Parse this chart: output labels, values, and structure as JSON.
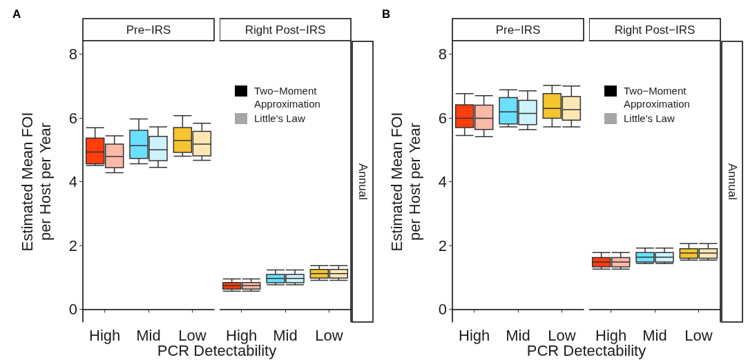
{
  "chart_data": [
    {
      "type": "box",
      "title": "Pre−IRS",
      "ylabel": "Estimated Mean FOI\nper Host per Year",
      "xlabel": "PCR Detectability",
      "annotations": [
        "A"
      ],
      "categories": [
        "High",
        "Mid",
        "Low"
      ],
      "ylim": [
        -0.4,
        8.4
      ],
      "yticks": [
        0,
        2,
        4,
        6,
        8
      ],
      "grid": false,
      "series": [
        {
          "colors": [
            "#ff3d0d",
            "#6ae0ff",
            "#f5c431"
          ],
          "boxes": [
            {
              "low": 4.51,
              "q1": 4.56,
              "median": 4.93,
              "q3": 5.37,
              "high": 5.69
            },
            {
              "low": 4.56,
              "q1": 4.73,
              "median": 5.13,
              "q3": 5.61,
              "high": 5.97
            },
            {
              "low": 4.8,
              "q1": 4.92,
              "median": 5.29,
              "q3": 5.7,
              "high": 6.07
            }
          ]
        },
        {
          "colors": [
            "#fbb9a8",
            "#ccf3fd",
            "#fde8b5"
          ],
          "boxes": [
            {
              "low": 4.28,
              "q1": 4.44,
              "median": 4.79,
              "q3": 5.18,
              "high": 5.44
            },
            {
              "low": 4.45,
              "q1": 4.66,
              "median": 5.0,
              "q3": 5.42,
              "high": 5.72
            },
            {
              "low": 4.67,
              "q1": 4.81,
              "median": 5.18,
              "q3": 5.58,
              "high": 5.83
            }
          ]
        }
      ]
    },
    {
      "type": "box",
      "title": "Right Post−IRS",
      "annotations": [
        "Annual",
        "Two−Moment Approximation",
        "Little's Law"
      ],
      "categories": [
        "High",
        "Mid",
        "Low"
      ],
      "ylim": [
        -0.4,
        8.4
      ],
      "yticks": [
        0,
        2,
        4,
        6,
        8
      ],
      "grid": false,
      "tick_labels": "x",
      "series": [
        {
          "colors": [
            "#ff3d0d",
            "#6ae0ff",
            "#f5c431"
          ],
          "boxes": [
            {
              "low": 0.57,
              "q1": 0.63,
              "median": 0.74,
              "q3": 0.84,
              "high": 0.95
            },
            {
              "low": 0.77,
              "q1": 0.83,
              "median": 0.97,
              "q3": 1.09,
              "high": 1.23
            },
            {
              "low": 0.91,
              "q1": 0.98,
              "median": 1.12,
              "q3": 1.25,
              "high": 1.37
            }
          ]
        },
        {
          "colors": [
            "#fbb9a8",
            "#ccf3fd",
            "#fde8b5"
          ],
          "boxes": [
            {
              "low": 0.57,
              "q1": 0.63,
              "median": 0.74,
              "q3": 0.84,
              "high": 0.95
            },
            {
              "low": 0.77,
              "q1": 0.83,
              "median": 0.97,
              "q3": 1.09,
              "high": 1.23
            },
            {
              "low": 0.91,
              "q1": 0.98,
              "median": 1.12,
              "q3": 1.25,
              "high": 1.37
            }
          ]
        }
      ]
    },
    {
      "type": "box",
      "title": "Pre−IRS",
      "ylabel": "Estimated Mean FOI\nper Host per Year",
      "xlabel": "PCR Detectability",
      "annotations": [
        "B"
      ],
      "categories": [
        "High",
        "Mid",
        "Low"
      ],
      "ylim": [
        -0.4,
        8.4
      ],
      "yticks": [
        0,
        2,
        4,
        6,
        8
      ],
      "grid": false,
      "series": [
        {
          "colors": [
            "#ff3d0d",
            "#6ae0ff",
            "#f5c431"
          ],
          "boxes": [
            {
              "low": 5.45,
              "q1": 5.7,
              "median": 5.99,
              "q3": 6.41,
              "high": 6.76
            },
            {
              "low": 5.72,
              "q1": 5.81,
              "median": 6.19,
              "q3": 6.64,
              "high": 6.88
            },
            {
              "low": 5.72,
              "q1": 5.99,
              "median": 6.3,
              "q3": 6.76,
              "high": 7.02
            }
          ]
        },
        {
          "colors": [
            "#fbb9a8",
            "#ccf3fd",
            "#fde8b5"
          ],
          "boxes": [
            {
              "low": 5.41,
              "q1": 5.64,
              "median": 5.99,
              "q3": 6.4,
              "high": 6.7
            },
            {
              "low": 5.63,
              "q1": 5.79,
              "median": 6.14,
              "q3": 6.55,
              "high": 6.85
            },
            {
              "low": 5.72,
              "q1": 5.93,
              "median": 6.26,
              "q3": 6.67,
              "high": 7.0
            }
          ]
        }
      ]
    },
    {
      "type": "box",
      "title": "Right Post−IRS",
      "annotations": [
        "Annual",
        "Two−Moment Approximation",
        "Little's Law"
      ],
      "categories": [
        "High",
        "Mid",
        "Low"
      ],
      "ylim": [
        -0.4,
        8.4
      ],
      "yticks": [
        0,
        2,
        4,
        6,
        8
      ],
      "grid": false,
      "tick_labels": "x",
      "series": [
        {
          "colors": [
            "#ff3d0d",
            "#6ae0ff",
            "#f5c431"
          ],
          "boxes": [
            {
              "low": 1.26,
              "q1": 1.33,
              "median": 1.48,
              "q3": 1.62,
              "high": 1.78
            },
            {
              "low": 1.43,
              "q1": 1.48,
              "median": 1.63,
              "q3": 1.78,
              "high": 1.92
            },
            {
              "low": 1.54,
              "q1": 1.6,
              "median": 1.76,
              "q3": 1.9,
              "high": 2.06
            }
          ]
        },
        {
          "colors": [
            "#fbb9a8",
            "#ccf3fd",
            "#fde8b5"
          ],
          "boxes": [
            {
              "low": 1.26,
              "q1": 1.33,
              "median": 1.48,
              "q3": 1.62,
              "high": 1.78
            },
            {
              "low": 1.43,
              "q1": 1.48,
              "median": 1.63,
              "q3": 1.78,
              "high": 1.92
            },
            {
              "low": 1.54,
              "q1": 1.6,
              "median": 1.76,
              "q3": 1.9,
              "high": 2.06
            }
          ]
        }
      ]
    }
  ]
}
